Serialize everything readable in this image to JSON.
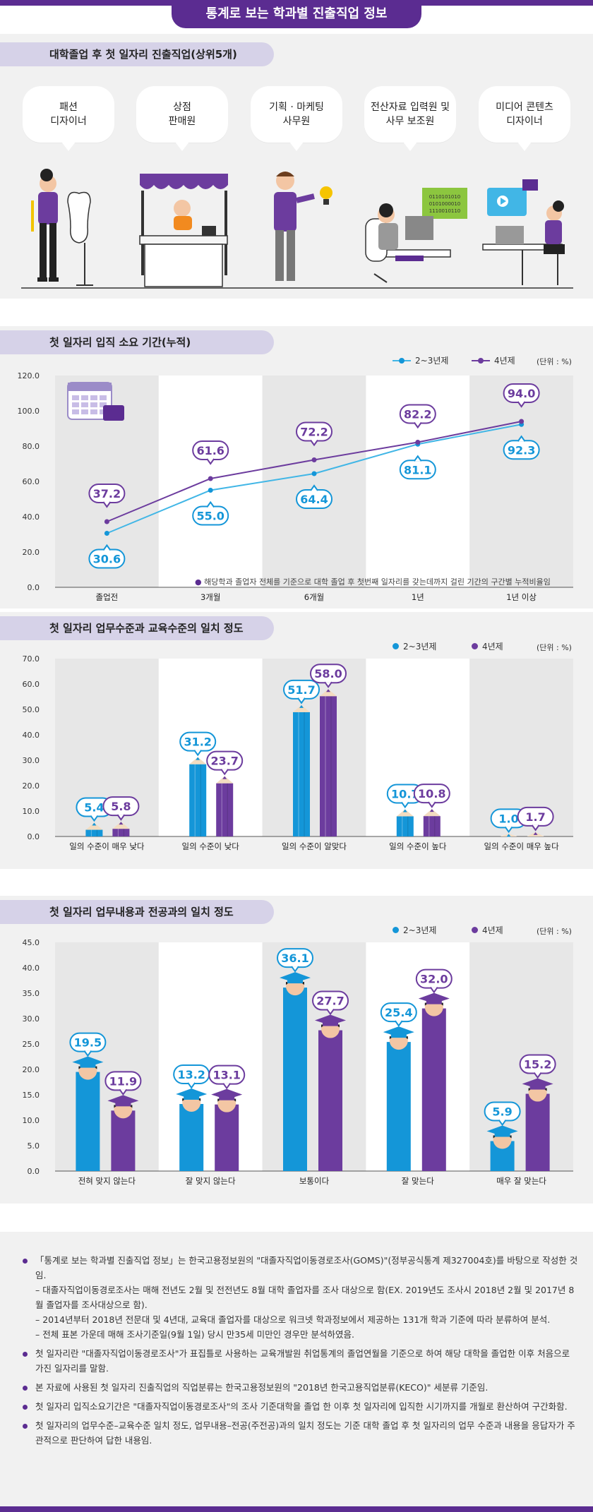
{
  "page_title": "통계로 보는 학과별 진출직업 정보",
  "colors": {
    "purple": "#5b2c91",
    "blue": "#1496d8",
    "light_blue": "#41b6e6",
    "lilac": "#6c3c9e"
  },
  "section1": {
    "title": "대학졸업 후 첫 일자리 진출직업(상위5개)",
    "jobs": [
      "패션\n디자이너",
      "상점\n판매원",
      "기획 · 마케팅\n사무원",
      "전산자료 입력원 및\n사무 보조원",
      "미디어 콘텐츠\n디자이너"
    ]
  },
  "legend": {
    "series_a": "2~3년제",
    "series_b": "4년제",
    "unit": "(단위 : %)"
  },
  "chart_data": [
    {
      "type": "line",
      "title": "첫 일자리 입직 소요 기간(누적)",
      "categories": [
        "졸업전",
        "3개월",
        "6개월",
        "1년",
        "1년 이상"
      ],
      "series": [
        {
          "name": "2~3년제",
          "values": [
            30.6,
            55.0,
            64.4,
            81.1,
            92.3
          ]
        },
        {
          "name": "4년제",
          "values": [
            37.2,
            61.6,
            72.2,
            82.2,
            94.0
          ]
        }
      ],
      "ylim": [
        0,
        120
      ],
      "yticks": [
        "0.0",
        "20.0",
        "40.0",
        "60.0",
        "80.0",
        "100.0",
        "120.0"
      ],
      "note": "해당학과 졸업자 전체를 기준으로 대학 졸업 후 첫번째 일자리를 갖는데까지 걸린 기간의 구간별 누적비율임"
    },
    {
      "type": "bar",
      "title": "첫 일자리 업무수준과 교육수준의 일치 정도",
      "categories": [
        "일의 수준이 매우 낮다",
        "일의 수준이 낮다",
        "일의 수준이 알맞다",
        "일의 수준이 높다",
        "일의 수준이 매우 높다"
      ],
      "series": [
        {
          "name": "2~3년제",
          "values": [
            5.4,
            31.2,
            51.7,
            10.7,
            1.0
          ]
        },
        {
          "name": "4년제",
          "values": [
            5.8,
            23.7,
            58.0,
            10.8,
            1.7
          ]
        }
      ],
      "ylim": [
        0,
        70
      ],
      "yticks": [
        "0.0",
        "10.0",
        "20.0",
        "30.0",
        "40.0",
        "50.0",
        "60.0",
        "70.0"
      ]
    },
    {
      "type": "bar",
      "title": "첫 일자리 업무내용과 전공과의 일치 정도",
      "categories": [
        "전혀 맞지 않는다",
        "잘 맞지 않는다",
        "보통이다",
        "잘 맞는다",
        "매우 잘 맞는다"
      ],
      "series": [
        {
          "name": "2~3년제",
          "values": [
            19.5,
            13.2,
            36.1,
            25.4,
            5.9
          ]
        },
        {
          "name": "4년제",
          "values": [
            11.9,
            13.1,
            27.7,
            32.0,
            15.2
          ]
        }
      ],
      "ylim": [
        0,
        45
      ],
      "yticks": [
        "0.0",
        "5.0",
        "10.0",
        "15.0",
        "20.0",
        "25.0",
        "30.0",
        "35.0",
        "40.0",
        "45.0"
      ]
    }
  ],
  "footnotes": [
    {
      "text": "「통계로 보는 학과별 진출직업 정보」는 한국고용정보원의 \"대졸자직업이동경로조사(GOMS)\"(정부공식통계 제327004호)를 바탕으로 작성한 것임.",
      "subs": [
        "– 대졸자직업이동경로조사는 매해 전년도 2월 및 전전년도 8월 대학 졸업자를 조사 대상으로 함(EX. 2019년도 조사시 2018년 2월 및 2017년 8월 졸업자를 조사대상으로 함).",
        "– 2014년부터 2018년 전문대 및 4년대, 교육대 졸업자를 대상으로 워크넷 학과정보에서 제공하는 131개 학과 기준에 따라 분류하여 분석.",
        "– 전체 표본 가운데 매해 조사기준일(9월 1일) 당시 만35세 미만인 경우만 분석하였음."
      ]
    },
    {
      "text": "첫 일자리란 \"대졸자직업이동경로조사\"가 표집틀로 사용하는 교육개발원 취업통계의 졸업연월을 기준으로 하여 해당 대학을 졸업한 이후 처음으로 가진 일자리를 말함.",
      "subs": []
    },
    {
      "text": "본 자료에 사용된 첫 일자리 진출직업의 직업분류는 한국고용정보원의 \"2018년 한국고용직업분류(KECO)\" 세분류 기준임.",
      "subs": []
    },
    {
      "text": "첫 일자리 입직소요기간은 \"대졸자직업이동경로조사\"의 조사 기준대학을 졸업 한 이후 첫 일자리에 입직한 시기까지를 개월로 환산하여 구간화함.",
      "subs": []
    },
    {
      "text": "첫 일자리의 업무수준–교육수준 일치 정도, 업무내용–전공(주전공)과의 일치 정도는 기준 대학 졸업 후 첫 일자리의 업무 수준과 내용을 응답자가 주관적으로 판단하여 답한 내용임.",
      "subs": []
    }
  ]
}
